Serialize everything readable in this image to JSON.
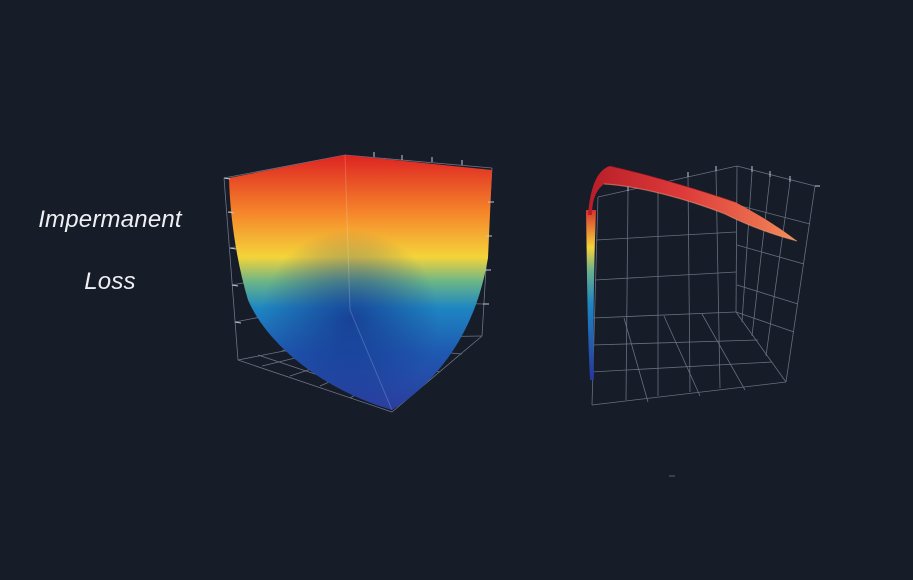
{
  "title_lines": [
    "Impermanent",
    "Loss"
  ],
  "chart_data": [
    {
      "type": "surface",
      "title": "Impermanent Loss",
      "view": "front-corner",
      "colorscale": [
        "#283a9c",
        "#1f58b0",
        "#1e86c2",
        "#f4d43a",
        "#f5832a",
        "#dd2323"
      ],
      "grid": true
    },
    {
      "type": "surface",
      "view": "side",
      "colorscale": [
        "#283a9c",
        "#1f58b0",
        "#1e86c2",
        "#f4d43a",
        "#f5832a",
        "#dd2323"
      ],
      "grid": true
    }
  ]
}
